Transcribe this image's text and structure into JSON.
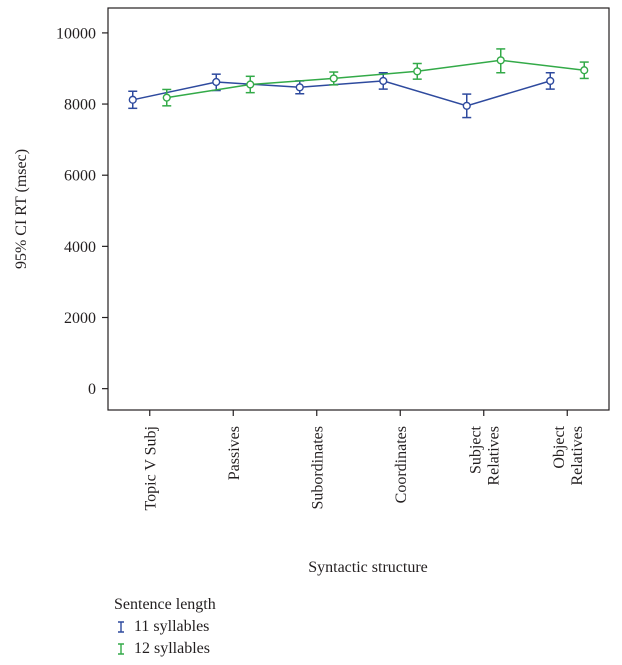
{
  "chart_data": {
    "type": "line",
    "ylabel": "95% CI RT (msec)",
    "xlabel": "Syntactic structure",
    "ylim": [
      -600,
      10700
    ],
    "yticks": [
      0,
      2000,
      4000,
      6000,
      8000,
      10000
    ],
    "categories": [
      [
        "Topic V Subj"
      ],
      [
        "Passives"
      ],
      [
        "Subordinates"
      ],
      [
        "Coordinates"
      ],
      [
        "Subject",
        "Relatives"
      ],
      [
        "Object",
        "Relatives"
      ]
    ],
    "series": [
      {
        "name": "11 syllables",
        "color": "#2e4a9e",
        "mean": [
          8120,
          8620,
          8470,
          8650,
          7950,
          8650
        ],
        "ci_low": [
          7880,
          8380,
          8290,
          8420,
          7620,
          8420
        ],
        "ci_high": [
          8360,
          8840,
          8650,
          8880,
          8280,
          8880
        ]
      },
      {
        "name": "12 syllables",
        "color": "#33aa48",
        "mean": [
          8180,
          8550,
          8720,
          8920,
          9230,
          8950
        ],
        "ci_low": [
          7950,
          8320,
          8540,
          8700,
          8880,
          8720
        ],
        "ci_high": [
          8410,
          8780,
          8900,
          9140,
          9550,
          9180
        ]
      }
    ],
    "legend": {
      "title": "Sentence length",
      "placement": "bottom-left"
    }
  }
}
